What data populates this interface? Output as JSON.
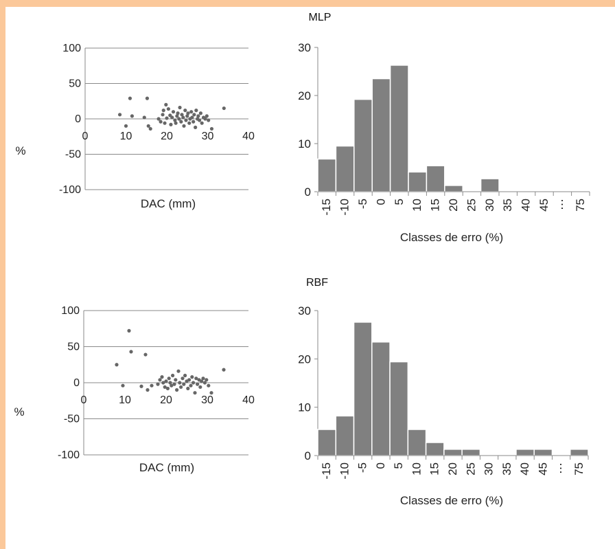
{
  "charts": {
    "mlp": {
      "title": "MLP",
      "scatter": {
        "ylabel": "%",
        "xlabel": "DAC (mm)",
        "xticks": [
          "0",
          "10",
          "20",
          "30",
          "40"
        ],
        "yticks": [
          "100",
          "50",
          "0",
          "-50",
          "-100"
        ]
      },
      "hist": {
        "xlabel": "Classes de erro (%)",
        "yticks": [
          "30",
          "20",
          "10",
          "0"
        ]
      }
    },
    "rbf": {
      "title": "RBF",
      "scatter": {
        "ylabel": "%",
        "xlabel": "DAC (mm)",
        "xticks": [
          "0",
          "10",
          "20",
          "30",
          "40"
        ],
        "yticks": [
          "100",
          "50",
          "0",
          "-50",
          "-100"
        ]
      },
      "hist": {
        "xlabel": "Classes de erro (%)",
        "yticks": [
          "30",
          "20",
          "10",
          "0"
        ]
      }
    }
  },
  "chart_data": [
    {
      "type": "scatter",
      "title": "MLP",
      "xlabel": "DAC (mm)",
      "ylabel": "%",
      "xlim": [
        0,
        40
      ],
      "ylim": [
        -100,
        100
      ],
      "xticks": [
        0,
        10,
        20,
        30,
        40
      ],
      "yticks": [
        100,
        50,
        0,
        -50,
        -100
      ],
      "grid": "horizontal",
      "color": "#666666",
      "points": [
        [
          8.5,
          6
        ],
        [
          10,
          -10
        ],
        [
          11,
          29
        ],
        [
          11.5,
          4
        ],
        [
          14.5,
          2
        ],
        [
          15.2,
          29
        ],
        [
          15.5,
          -10
        ],
        [
          16,
          -14
        ],
        [
          18,
          0
        ],
        [
          18.5,
          -4
        ],
        [
          19,
          6
        ],
        [
          19.2,
          12
        ],
        [
          19.5,
          -6
        ],
        [
          19.8,
          20
        ],
        [
          20,
          1
        ],
        [
          20.4,
          14
        ],
        [
          20.8,
          5
        ],
        [
          21,
          -8
        ],
        [
          21.3,
          2
        ],
        [
          21.6,
          10
        ],
        [
          22,
          -2
        ],
        [
          22.2,
          -6
        ],
        [
          22.5,
          4
        ],
        [
          22.7,
          8
        ],
        [
          23,
          0
        ],
        [
          23.2,
          16
        ],
        [
          23.5,
          -4
        ],
        [
          23.7,
          6
        ],
        [
          24,
          2
        ],
        [
          24.2,
          -10
        ],
        [
          24.5,
          12
        ],
        [
          24.7,
          -2
        ],
        [
          25,
          4
        ],
        [
          25.2,
          8
        ],
        [
          25.5,
          -6
        ],
        [
          25.7,
          0
        ],
        [
          26,
          10
        ],
        [
          26.2,
          2
        ],
        [
          26.5,
          -4
        ],
        [
          26.7,
          6
        ],
        [
          27,
          -12
        ],
        [
          27.2,
          12
        ],
        [
          27.5,
          0
        ],
        [
          27.7,
          4
        ],
        [
          28,
          -2
        ],
        [
          28.3,
          8
        ],
        [
          28.6,
          -6
        ],
        [
          29,
          2
        ],
        [
          29.4,
          0
        ],
        [
          29.8,
          4
        ],
        [
          30.2,
          -2
        ],
        [
          31,
          -14
        ],
        [
          34,
          15
        ]
      ]
    },
    {
      "type": "bar",
      "title": "MLP",
      "xlabel": "Classes de erro (%)",
      "ylim": [
        0,
        30
      ],
      "yticks": [
        30,
        20,
        10,
        0
      ],
      "categories": [
        "-15",
        "-10",
        "-5",
        "0",
        "5",
        "10",
        "15",
        "20",
        "25",
        "30",
        "35",
        "40",
        "45",
        "⋯",
        "75"
      ],
      "values": [
        6.8,
        9.5,
        19.2,
        23.5,
        26.3,
        4.1,
        5.4,
        1.3,
        0,
        2.7,
        0,
        0,
        0,
        0,
        0
      ],
      "color": "#808080"
    },
    {
      "type": "scatter",
      "title": "RBF",
      "xlabel": "DAC (mm)",
      "ylabel": "%",
      "xlim": [
        0,
        40
      ],
      "ylim": [
        -100,
        100
      ],
      "xticks": [
        0,
        10,
        20,
        30,
        40
      ],
      "yticks": [
        100,
        50,
        0,
        -50,
        -100
      ],
      "grid": "horizontal",
      "color": "#666666",
      "points": [
        [
          8,
          25
        ],
        [
          9.5,
          -4
        ],
        [
          11,
          72
        ],
        [
          11.5,
          43
        ],
        [
          14,
          -5
        ],
        [
          15,
          39
        ],
        [
          15.5,
          -10
        ],
        [
          16.5,
          -4
        ],
        [
          18,
          -2
        ],
        [
          18.5,
          4
        ],
        [
          19,
          8
        ],
        [
          19.3,
          0
        ],
        [
          19.7,
          -6
        ],
        [
          20,
          2
        ],
        [
          20.4,
          -8
        ],
        [
          20.7,
          6
        ],
        [
          21,
          0
        ],
        [
          21.3,
          -4
        ],
        [
          21.6,
          10
        ],
        [
          22,
          -2
        ],
        [
          22.3,
          4
        ],
        [
          22.6,
          -10
        ],
        [
          23,
          16
        ],
        [
          23.3,
          0
        ],
        [
          23.6,
          -6
        ],
        [
          24,
          6
        ],
        [
          24.3,
          -2
        ],
        [
          24.6,
          10
        ],
        [
          25,
          2
        ],
        [
          25.3,
          -8
        ],
        [
          25.6,
          4
        ],
        [
          26,
          -4
        ],
        [
          26.3,
          8
        ],
        [
          26.6,
          0
        ],
        [
          27,
          -14
        ],
        [
          27.3,
          6
        ],
        [
          27.6,
          -2
        ],
        [
          28,
          4
        ],
        [
          28.3,
          -6
        ],
        [
          28.6,
          2
        ],
        [
          29,
          6
        ],
        [
          29.4,
          0
        ],
        [
          29.8,
          4
        ],
        [
          30.3,
          -4
        ],
        [
          31,
          -14
        ],
        [
          34,
          18
        ]
      ]
    },
    {
      "type": "bar",
      "title": "RBF",
      "xlabel": "Classes de erro (%)",
      "ylim": [
        0,
        30
      ],
      "yticks": [
        30,
        20,
        10,
        0
      ],
      "categories": [
        "-15",
        "-10",
        "-5",
        "0",
        "5",
        "10",
        "15",
        "20",
        "25",
        "30",
        "35",
        "40",
        "45",
        "⋯",
        "75"
      ],
      "values": [
        5.4,
        8.2,
        27.6,
        23.5,
        19.4,
        5.4,
        2.7,
        1.3,
        1.3,
        0,
        0,
        1.3,
        1.3,
        0,
        1.3
      ],
      "color": "#808080"
    }
  ]
}
